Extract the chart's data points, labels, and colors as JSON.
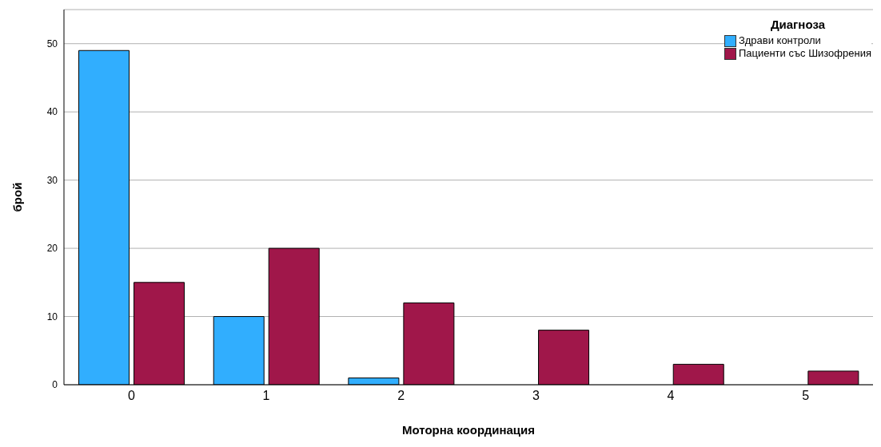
{
  "chart_data": {
    "type": "bar",
    "xlabel": "Моторна координация",
    "ylabel": "брой",
    "legend_title": "Диагноза",
    "categories": [
      "0",
      "1",
      "2",
      "3",
      "4",
      "5"
    ],
    "series": [
      {
        "name": "Здрави контроли",
        "color": "#31aefe",
        "values": [
          49,
          10,
          1,
          null,
          null,
          null
        ]
      },
      {
        "name": "Пациенти със Шизофрения",
        "color": "#a0174a",
        "values": [
          15,
          20,
          12,
          8,
          3,
          2
        ]
      }
    ],
    "ylim": [
      0,
      55
    ],
    "yticks": [
      0,
      10,
      20,
      30,
      40,
      50
    ],
    "grid": "y",
    "legend": "top right"
  }
}
